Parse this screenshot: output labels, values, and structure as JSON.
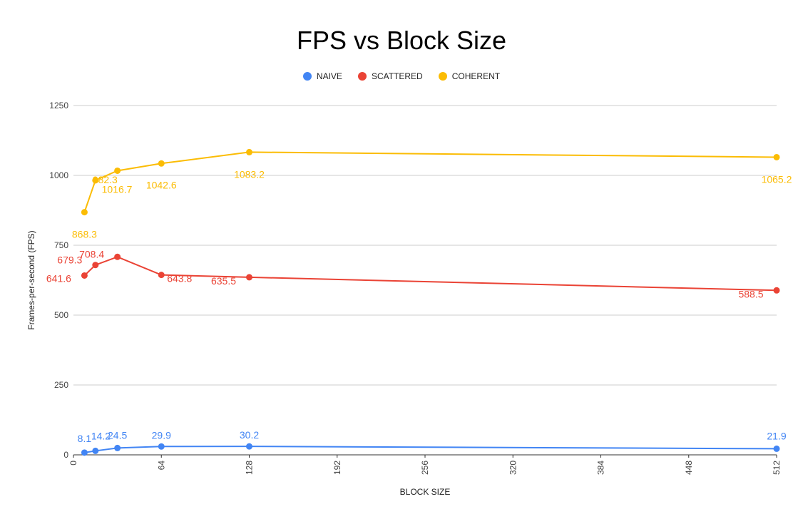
{
  "chart_data": {
    "type": "line",
    "title": "FPS vs Block Size",
    "xlabel": "BLOCK SIZE",
    "ylabel": "Frames-per-second (FPS)",
    "xlim": [
      0,
      512
    ],
    "ylim": [
      0,
      1250
    ],
    "xticks": [
      0,
      64,
      128,
      192,
      256,
      320,
      384,
      448,
      512
    ],
    "yticks": [
      0,
      250,
      500,
      750,
      1000,
      1250
    ],
    "grid": true,
    "legend_position": "top",
    "x": [
      8,
      16,
      32,
      64,
      128,
      512
    ],
    "series": [
      {
        "name": "NAIVE",
        "color": "#4285F4",
        "values": [
          8.1,
          14.2,
          24.5,
          29.9,
          30.2,
          21.9
        ],
        "labels": [
          "8.1",
          "14.2",
          "24.5",
          "29.9",
          "30.2",
          "21.9"
        ]
      },
      {
        "name": "SCATTERED",
        "color": "#EA4335",
        "values": [
          641.6,
          679.3,
          708.4,
          643.8,
          635.5,
          588.5
        ],
        "labels": [
          "641.6",
          "679.3",
          "708.4",
          "643.8",
          "635.5",
          "588.5"
        ]
      },
      {
        "name": "COHERENT",
        "color": "#FBBC04",
        "values": [
          868.3,
          982.3,
          1016.7,
          1042.6,
          1083.2,
          1065.2
        ],
        "labels": [
          "868.3",
          "982.3",
          "1016.7",
          "1042.6",
          "1083.2",
          "1065.2"
        ]
      }
    ]
  }
}
